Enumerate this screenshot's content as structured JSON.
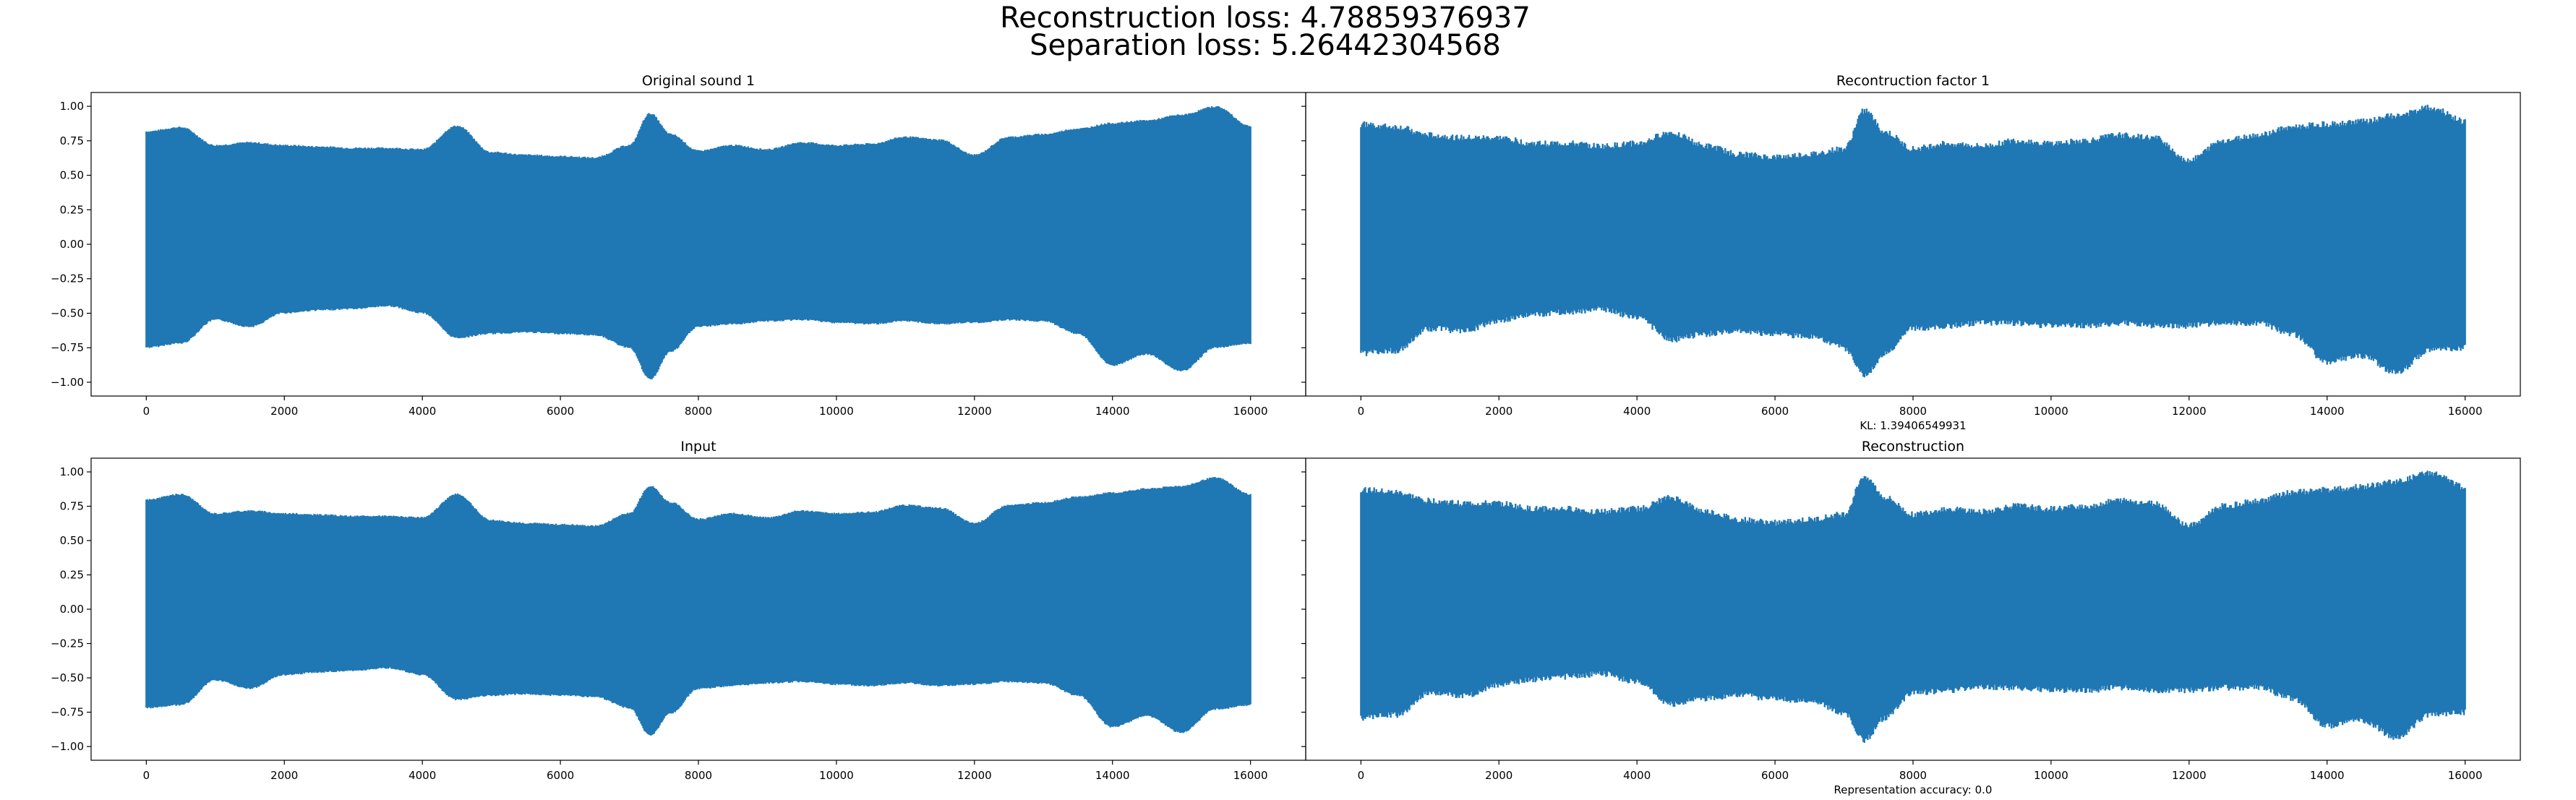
{
  "figure": {
    "suptitle_lines": [
      "Reconstruction loss: 4.78859376937",
      "Separation loss: 5.26442304568"
    ]
  },
  "colors": {
    "series": "#1f77b4",
    "axes": "#000000",
    "background": "#ffffff"
  },
  "chart_data": [
    {
      "type": "line",
      "title": "Original sound 1",
      "xlabel": "",
      "ylabel": "",
      "xlim": [
        -800,
        16800
      ],
      "ylim": [
        -1.1,
        1.1
      ],
      "xticks": [
        0,
        2000,
        4000,
        6000,
        8000,
        10000,
        12000,
        14000,
        16000
      ],
      "yticks": [
        -1.0,
        -0.75,
        -0.5,
        -0.25,
        0.0,
        0.25,
        0.5,
        0.75,
        1.0
      ],
      "ytick_labels": [
        "−1.00",
        "−0.75",
        "−0.50",
        "−0.25",
        "0.00",
        "0.25",
        "0.50",
        "0.75",
        "1.00"
      ],
      "envelope": {
        "x": [
          0,
          500,
          1000,
          1500,
          2000,
          2500,
          3000,
          3500,
          4000,
          4500,
          5000,
          5500,
          6000,
          6500,
          7000,
          7300,
          7600,
          8000,
          8500,
          9000,
          9500,
          10000,
          10500,
          11000,
          11500,
          12000,
          12500,
          13000,
          13500,
          14000,
          14500,
          15000,
          15500,
          16000
        ],
        "upper": [
          0.82,
          0.85,
          0.72,
          0.74,
          0.72,
          0.71,
          0.7,
          0.7,
          0.69,
          0.86,
          0.67,
          0.65,
          0.64,
          0.63,
          0.72,
          0.95,
          0.8,
          0.68,
          0.72,
          0.69,
          0.74,
          0.72,
          0.73,
          0.78,
          0.76,
          0.65,
          0.78,
          0.8,
          0.84,
          0.88,
          0.9,
          0.94,
          1.0,
          0.86
        ],
        "lower": [
          -0.75,
          -0.72,
          -0.55,
          -0.6,
          -0.5,
          -0.48,
          -0.47,
          -0.45,
          -0.5,
          -0.68,
          -0.65,
          -0.64,
          -0.65,
          -0.66,
          -0.75,
          -0.98,
          -0.78,
          -0.6,
          -0.58,
          -0.56,
          -0.55,
          -0.57,
          -0.58,
          -0.56,
          -0.58,
          -0.57,
          -0.55,
          -0.56,
          -0.65,
          -0.88,
          -0.8,
          -0.92,
          -0.75,
          -0.72
        ]
      }
    },
    {
      "type": "line",
      "title": "Recontruction factor 1",
      "xlabel": "KL: 1.39406549931",
      "ylabel": "",
      "xlim": [
        -800,
        16800
      ],
      "ylim": [
        -1.1,
        1.1
      ],
      "xticks": [
        0,
        2000,
        4000,
        6000,
        8000,
        10000,
        12000,
        14000,
        16000
      ],
      "yticks": [
        -1.0,
        -0.75,
        -0.5,
        -0.25,
        0.0,
        0.25,
        0.5,
        0.75,
        1.0
      ],
      "ytick_labels": [
        "",
        "",
        "",
        "",
        "",
        "",
        "",
        "",
        ""
      ],
      "envelope": {
        "x": [
          0,
          500,
          1000,
          1500,
          2000,
          2500,
          3000,
          3500,
          4000,
          4500,
          5000,
          5500,
          6000,
          6500,
          7000,
          7300,
          7600,
          8000,
          8500,
          9000,
          9500,
          10000,
          10500,
          11000,
          11500,
          12000,
          12500,
          13000,
          13500,
          14000,
          14500,
          15000,
          15500,
          16000
        ],
        "upper": [
          0.88,
          0.86,
          0.8,
          0.78,
          0.78,
          0.74,
          0.74,
          0.72,
          0.74,
          0.82,
          0.72,
          0.66,
          0.64,
          0.66,
          0.7,
          0.98,
          0.82,
          0.7,
          0.74,
          0.72,
          0.76,
          0.74,
          0.76,
          0.8,
          0.78,
          0.62,
          0.76,
          0.8,
          0.86,
          0.88,
          0.9,
          0.94,
          1.0,
          0.9
        ],
        "lower": [
          -0.8,
          -0.78,
          -0.62,
          -0.64,
          -0.56,
          -0.52,
          -0.5,
          -0.48,
          -0.54,
          -0.7,
          -0.66,
          -0.64,
          -0.66,
          -0.68,
          -0.76,
          -0.96,
          -0.8,
          -0.62,
          -0.6,
          -0.58,
          -0.58,
          -0.6,
          -0.6,
          -0.58,
          -0.6,
          -0.6,
          -0.58,
          -0.58,
          -0.66,
          -0.86,
          -0.82,
          -0.94,
          -0.78,
          -0.76
        ]
      }
    },
    {
      "type": "line",
      "title": "Input",
      "xlabel": "",
      "ylabel": "",
      "xlim": [
        -800,
        16800
      ],
      "ylim": [
        -1.1,
        1.1
      ],
      "xticks": [
        0,
        2000,
        4000,
        6000,
        8000,
        10000,
        12000,
        14000,
        16000
      ],
      "yticks": [
        -1.0,
        -0.75,
        -0.5,
        -0.25,
        0.0,
        0.25,
        0.5,
        0.75,
        1.0
      ],
      "ytick_labels": [
        "−1.00",
        "−0.75",
        "−0.50",
        "−0.25",
        "0.00",
        "0.25",
        "0.50",
        "0.75",
        "1.00"
      ],
      "envelope": {
        "x": [
          0,
          500,
          1000,
          1500,
          2000,
          2500,
          3000,
          3500,
          4000,
          4500,
          5000,
          5500,
          6000,
          6500,
          7000,
          7300,
          7600,
          8000,
          8500,
          9000,
          9500,
          10000,
          10500,
          11000,
          11500,
          12000,
          12500,
          13000,
          13500,
          14000,
          14500,
          15000,
          15500,
          16000
        ],
        "upper": [
          0.8,
          0.84,
          0.7,
          0.72,
          0.7,
          0.69,
          0.68,
          0.68,
          0.67,
          0.84,
          0.65,
          0.63,
          0.62,
          0.61,
          0.7,
          0.9,
          0.78,
          0.66,
          0.7,
          0.67,
          0.72,
          0.7,
          0.71,
          0.76,
          0.74,
          0.63,
          0.76,
          0.78,
          0.82,
          0.85,
          0.88,
          0.9,
          0.96,
          0.84
        ],
        "lower": [
          -0.72,
          -0.7,
          -0.52,
          -0.58,
          -0.48,
          -0.46,
          -0.45,
          -0.43,
          -0.48,
          -0.66,
          -0.63,
          -0.62,
          -0.63,
          -0.64,
          -0.72,
          -0.92,
          -0.76,
          -0.58,
          -0.56,
          -0.54,
          -0.53,
          -0.55,
          -0.56,
          -0.54,
          -0.56,
          -0.55,
          -0.53,
          -0.54,
          -0.63,
          -0.86,
          -0.78,
          -0.9,
          -0.73,
          -0.7
        ]
      }
    },
    {
      "type": "line",
      "title": "Reconstruction",
      "xlabel": "Representation accuracy: 0.0",
      "ylabel": "",
      "xlim": [
        -800,
        16800
      ],
      "ylim": [
        -1.1,
        1.1
      ],
      "xticks": [
        0,
        2000,
        4000,
        6000,
        8000,
        10000,
        12000,
        14000,
        16000
      ],
      "yticks": [
        -1.0,
        -0.75,
        -0.5,
        -0.25,
        0.0,
        0.25,
        0.5,
        0.75,
        1.0
      ],
      "ytick_labels": [
        "",
        "",
        "",
        "",
        "",
        "",
        "",
        "",
        ""
      ],
      "envelope": {
        "x": [
          0,
          500,
          1000,
          1500,
          2000,
          2500,
          3000,
          3500,
          4000,
          4500,
          5000,
          5500,
          6000,
          6500,
          7000,
          7300,
          7600,
          8000,
          8500,
          9000,
          9500,
          10000,
          10500,
          11000,
          11500,
          12000,
          12500,
          13000,
          13500,
          14000,
          14500,
          15000,
          15500,
          16000
        ],
        "upper": [
          0.88,
          0.86,
          0.8,
          0.78,
          0.78,
          0.74,
          0.74,
          0.72,
          0.74,
          0.82,
          0.72,
          0.66,
          0.64,
          0.66,
          0.7,
          0.98,
          0.82,
          0.7,
          0.74,
          0.72,
          0.76,
          0.74,
          0.76,
          0.8,
          0.78,
          0.62,
          0.76,
          0.8,
          0.86,
          0.88,
          0.9,
          0.94,
          1.0,
          0.9
        ],
        "lower": [
          -0.8,
          -0.78,
          -0.62,
          -0.64,
          -0.56,
          -0.52,
          -0.5,
          -0.48,
          -0.54,
          -0.7,
          -0.66,
          -0.64,
          -0.66,
          -0.68,
          -0.76,
          -0.96,
          -0.8,
          -0.62,
          -0.6,
          -0.58,
          -0.58,
          -0.6,
          -0.6,
          -0.58,
          -0.6,
          -0.6,
          -0.58,
          -0.58,
          -0.66,
          -0.86,
          -0.82,
          -0.94,
          -0.78,
          -0.76
        ]
      }
    }
  ]
}
